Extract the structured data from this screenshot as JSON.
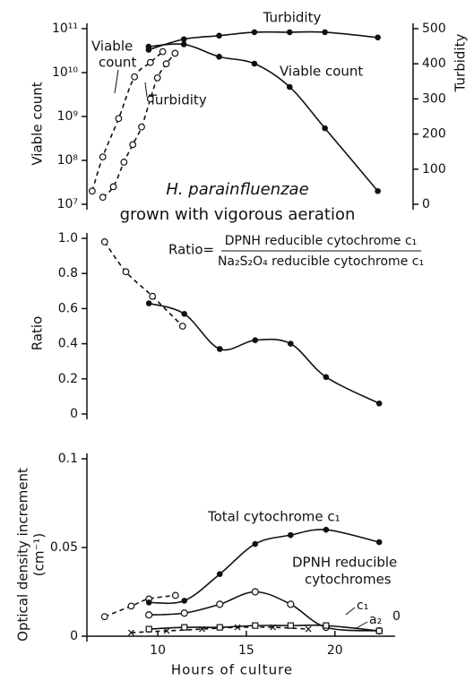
{
  "chart_data": [
    {
      "type": "line",
      "yscale": "log",
      "ylabel": "Viable count",
      "y2label": "Turbidity",
      "annotations": [
        "Turbidity",
        "Viable",
        "count",
        "Turbidity",
        "Viable count",
        "H. parainfluenzae",
        "grown with vigorous aeration"
      ],
      "xlim": [
        6,
        24.5
      ],
      "ylim": [
        10000000,
        100000000000
      ],
      "yticks": [
        {
          "value": 10000000,
          "label": "10⁷"
        },
        {
          "value": 100000000,
          "label": "10⁸"
        },
        {
          "value": 1000000000,
          "label": "10⁹"
        },
        {
          "value": 10000000000,
          "label": "10¹⁰"
        },
        {
          "value": 100000000000,
          "label": "10¹¹"
        }
      ],
      "y2lim": [
        0,
        500
      ],
      "y2ticks": [
        0,
        100,
        200,
        300,
        400,
        500
      ],
      "series": [
        {
          "color": "#111",
          "marker": "open",
          "dashed": true,
          "x": [
            6.3,
            6.9,
            7.8,
            8.7,
            9.6,
            10.3
          ],
          "values": [
            20000000,
            120000000,
            900000000,
            8000000000,
            17000000000,
            30000000000
          ]
        },
        {
          "color": "#111",
          "marker": "open",
          "dashed": true,
          "axis": "y2",
          "x": [
            6.9,
            7.5,
            8.1,
            8.6,
            9.1,
            9.6,
            10.0,
            10.5,
            11.0
          ],
          "values": [
            20,
            50,
            120,
            170,
            220,
            300,
            360,
            400,
            430
          ]
        },
        {
          "color": "#111",
          "marker": "filled",
          "dashed": false,
          "axis": "y2",
          "x": [
            9.5,
            11.5,
            13.5,
            15.5,
            17.5,
            19.5,
            22.5
          ],
          "values": [
            440,
            470,
            480,
            490,
            490,
            490,
            475
          ]
        },
        {
          "color": "#111",
          "marker": "filled",
          "dashed": false,
          "x": [
            9.5,
            11.5,
            13.5,
            15.5,
            17.5,
            19.5,
            22.5
          ],
          "values": [
            39000000000,
            44000000000,
            23000000000,
            16000000000,
            4700000000,
            540000000,
            20000000
          ]
        }
      ]
    },
    {
      "type": "line",
      "ylabel": "Ratio",
      "annotations": [
        "Ratio=",
        "DPNH reducible cytochrome c₁",
        "Na₂S₂O₄ reducible cytochrome c₁"
      ],
      "xlim": [
        6,
        23.4
      ],
      "ylim": [
        0,
        1
      ],
      "yticks": [
        0,
        0.2,
        0.4,
        0.6,
        0.8,
        {
          "value": 1,
          "label": "1.0"
        }
      ],
      "series": [
        {
          "color": "#111",
          "marker": "open",
          "dashed": true,
          "x": [
            7,
            8.2,
            9.7,
            11.4
          ],
          "values": [
            0.98,
            0.81,
            0.67,
            0.5
          ]
        },
        {
          "color": "#111",
          "marker": "filled",
          "dashed": false,
          "x": [
            9.5,
            11.5,
            13.5,
            15.5,
            17.5,
            19.5,
            22.5
          ],
          "values": [
            0.63,
            0.57,
            0.37,
            0.42,
            0.4,
            0.21,
            0.06
          ]
        }
      ]
    },
    {
      "type": "line",
      "ylabel": [
        "Optical density increment",
        "(cm⁻¹)"
      ],
      "xlabel": "Hours of culture",
      "annotations": [
        "Total cytochrome c₁",
        "DPNH reducible",
        "cytochromes",
        "c₁",
        "a₂",
        "0"
      ],
      "xlim": [
        6,
        23.4
      ],
      "xticks": [
        10,
        15,
        20
      ],
      "ylim": [
        0,
        0.1
      ],
      "yticks": [
        0,
        0.05,
        0.1
      ],
      "series": [
        {
          "color": "#111",
          "marker": "open",
          "dashed": true,
          "x": [
            7,
            8.5,
            9.5,
            11.0
          ],
          "values": [
            0.011,
            0.017,
            0.021,
            0.023
          ]
        },
        {
          "color": "#111",
          "marker": "filled",
          "dashed": false,
          "x": [
            9.5,
            11.5,
            13.5,
            15.5,
            17.5,
            19.5,
            22.5
          ],
          "values": [
            0.019,
            0.02,
            0.035,
            0.052,
            0.057,
            0.06,
            0.053
          ]
        },
        {
          "color": "#111",
          "marker": "dot",
          "dashed": false,
          "x": [
            9.5,
            11.5,
            13.5,
            15.5,
            17.5,
            19.5,
            22.5
          ],
          "values": [
            0.012,
            0.013,
            0.018,
            0.025,
            0.018,
            0.005,
            0.003
          ]
        },
        {
          "color": "#111",
          "marker": "cross",
          "dashed": true,
          "x": [
            8.5,
            10.5,
            12.5,
            14.5,
            16.5,
            18.5
          ],
          "values": [
            0.002,
            0.003,
            0.004,
            0.005,
            0.005,
            0.004
          ]
        },
        {
          "color": "#111",
          "marker": "square",
          "dashed": false,
          "x": [
            9.5,
            11.5,
            13.5,
            15.5,
            17.5,
            19.5,
            22.5
          ],
          "values": [
            0.004,
            0.005,
            0.005,
            0.006,
            0.006,
            0.006,
            0.003
          ]
        }
      ]
    }
  ]
}
